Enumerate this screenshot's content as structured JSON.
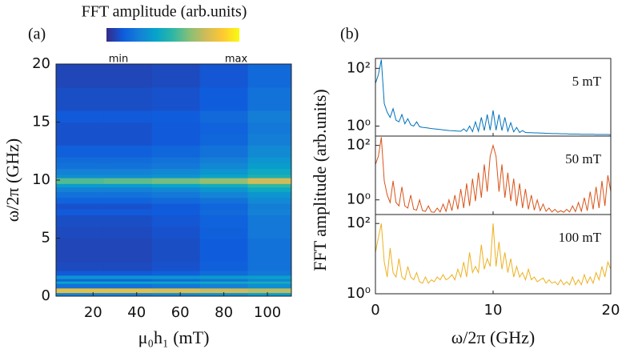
{
  "chart_data": [
    {
      "type": "heatmap",
      "panel_label": "(a)",
      "colorbar_title": "FFT amplitude (arb.units)",
      "colorbar_min": "min",
      "colorbar_max": "max",
      "colormap": [
        "#352a87",
        "#0f5cdd",
        "#1481d6",
        "#06a4ca",
        "#2eb7a4",
        "#87bf77",
        "#d1bb59",
        "#fec832",
        "#f9fb0e"
      ],
      "zlim": [
        0,
        1
      ],
      "xlabel": "μ₀h₁ (mT)",
      "ylabel": "ω/2π (GHz)",
      "xlim": [
        3,
        111
      ],
      "ylim": [
        0,
        20
      ],
      "xticks": [
        20,
        40,
        60,
        80,
        100
      ],
      "yticks": [
        0,
        5,
        10,
        15,
        20
      ],
      "xbins": [
        3,
        25,
        47,
        69,
        91,
        111
      ],
      "ybins": [
        0,
        0.3,
        0.7,
        1.1,
        1.3,
        1.5,
        1.8,
        2.2,
        3,
        4,
        5,
        6,
        7,
        7.5,
        8,
        8.5,
        9,
        9.4,
        9.7,
        10.2,
        10.5,
        11,
        11.5,
        12,
        13,
        14,
        15,
        16,
        18,
        20
      ],
      "z": [
        [
          0.25,
          0.25,
          0.28,
          0.3,
          0.35
        ],
        [
          0.8,
          0.8,
          0.78,
          0.75,
          0.72
        ],
        [
          0.2,
          0.2,
          0.22,
          0.25,
          0.3
        ],
        [
          0.38,
          0.38,
          0.38,
          0.4,
          0.42
        ],
        [
          0.15,
          0.15,
          0.17,
          0.2,
          0.25
        ],
        [
          0.32,
          0.32,
          0.32,
          0.34,
          0.36
        ],
        [
          0.12,
          0.12,
          0.14,
          0.18,
          0.22
        ],
        [
          0.08,
          0.08,
          0.1,
          0.14,
          0.2
        ],
        [
          0.07,
          0.07,
          0.09,
          0.13,
          0.2
        ],
        [
          0.07,
          0.07,
          0.09,
          0.13,
          0.2
        ],
        [
          0.08,
          0.08,
          0.1,
          0.14,
          0.22
        ],
        [
          0.09,
          0.09,
          0.11,
          0.15,
          0.22
        ],
        [
          0.12,
          0.12,
          0.13,
          0.17,
          0.25
        ],
        [
          0.1,
          0.1,
          0.12,
          0.16,
          0.24
        ],
        [
          0.15,
          0.15,
          0.17,
          0.2,
          0.28
        ],
        [
          0.2,
          0.2,
          0.22,
          0.26,
          0.32
        ],
        [
          0.25,
          0.25,
          0.27,
          0.32,
          0.4
        ],
        [
          0.35,
          0.35,
          0.38,
          0.42,
          0.5
        ],
        [
          0.55,
          0.57,
          0.6,
          0.65,
          0.75
        ],
        [
          0.3,
          0.3,
          0.32,
          0.38,
          0.45
        ],
        [
          0.25,
          0.25,
          0.27,
          0.32,
          0.4
        ],
        [
          0.2,
          0.2,
          0.22,
          0.27,
          0.35
        ],
        [
          0.18,
          0.18,
          0.2,
          0.24,
          0.32
        ],
        [
          0.14,
          0.14,
          0.16,
          0.2,
          0.28
        ],
        [
          0.1,
          0.1,
          0.12,
          0.16,
          0.24
        ],
        [
          0.1,
          0.1,
          0.12,
          0.15,
          0.22
        ],
        [
          0.12,
          0.12,
          0.13,
          0.17,
          0.24
        ],
        [
          0.09,
          0.09,
          0.1,
          0.13,
          0.2
        ],
        [
          0.07,
          0.07,
          0.08,
          0.11,
          0.17
        ]
      ]
    },
    {
      "type": "line",
      "panel_label": "(b)",
      "xlabel": "ω/2π (GHz)",
      "ylabel": "FFT amplitude (arb.units)",
      "xlim": [
        0,
        20
      ],
      "xticks": [
        0,
        10,
        20
      ],
      "log_y": true,
      "x": [
        0,
        0.25,
        0.5,
        0.75,
        1,
        1.25,
        1.5,
        1.75,
        2,
        2.25,
        2.5,
        2.75,
        3,
        3.25,
        3.5,
        3.75,
        4,
        4.25,
        4.5,
        4.75,
        5,
        5.25,
        5.5,
        5.75,
        6,
        6.25,
        6.5,
        6.75,
        7,
        7.25,
        7.5,
        7.75,
        8,
        8.25,
        8.5,
        8.75,
        9,
        9.25,
        9.5,
        9.75,
        10,
        10.25,
        10.5,
        10.75,
        11,
        11.25,
        11.5,
        11.75,
        12,
        12.25,
        12.5,
        12.75,
        13,
        13.25,
        13.5,
        13.75,
        14,
        14.25,
        14.5,
        14.75,
        15,
        15.25,
        15.5,
        15.75,
        16,
        16.25,
        16.5,
        16.75,
        17,
        17.25,
        17.5,
        17.75,
        18,
        18.25,
        18.5,
        18.75,
        19,
        19.25,
        19.5,
        19.75,
        20
      ],
      "series": [
        {
          "name": "5 mT",
          "color": "#0072bd",
          "ylim": [
            0.45,
            220
          ],
          "yticks": [
            {
              "value": 1,
              "label": "10⁰"
            },
            {
              "value": 100,
              "label": "10²"
            }
          ],
          "values": [
            30,
            60,
            200,
            6,
            3,
            2,
            4,
            1.6,
            1.4,
            2.5,
            1.2,
            1.8,
            1.1,
            1,
            1.4,
            0.95,
            0.9,
            0.88,
            0.85,
            0.82,
            0.8,
            0.78,
            0.76,
            0.74,
            0.72,
            0.7,
            0.69,
            0.68,
            0.67,
            0.66,
            0.8,
            0.65,
            1,
            0.64,
            1.4,
            0.66,
            2,
            0.7,
            2.5,
            0.72,
            3.5,
            0.72,
            2.5,
            0.7,
            2,
            0.66,
            1.3,
            0.63,
            0.9,
            0.6,
            0.7,
            0.6,
            0.59,
            0.59,
            0.58,
            0.58,
            0.57,
            0.57,
            0.56,
            0.56,
            0.55,
            0.55,
            0.55,
            0.54,
            0.54,
            0.54,
            0.53,
            0.53,
            0.53,
            0.53,
            0.52,
            0.52,
            0.52,
            0.52,
            0.52,
            0.51,
            0.51,
            0.51,
            0.51,
            0.51,
            0.5
          ]
        },
        {
          "name": "50 mT",
          "color": "#d95319",
          "ylim": [
            0.29,
            220
          ],
          "yticks": [
            {
              "value": 1,
              "label": "10⁰"
            },
            {
              "value": 100,
              "label": "10²"
            }
          ],
          "values": [
            20,
            40,
            200,
            5,
            1.5,
            0.8,
            5,
            0.8,
            0.6,
            3,
            0.6,
            0.5,
            1.5,
            0.45,
            0.42,
            1,
            0.4,
            0.38,
            0.6,
            0.36,
            0.35,
            0.5,
            0.36,
            0.7,
            0.38,
            1,
            0.4,
            1.5,
            0.45,
            2.5,
            0.5,
            4,
            0.6,
            6,
            0.9,
            10,
            1.2,
            20,
            2,
            40,
            100,
            40,
            2,
            20,
            1.2,
            10,
            0.9,
            6,
            0.6,
            4,
            0.5,
            2.5,
            0.45,
            1.5,
            0.42,
            1,
            0.4,
            0.7,
            0.38,
            0.5,
            0.36,
            0.45,
            0.35,
            0.4,
            0.35,
            0.45,
            0.36,
            0.6,
            0.37,
            0.8,
            0.38,
            1.2,
            0.4,
            2,
            0.45,
            3,
            0.5,
            5,
            0.6,
            8,
            2
          ]
        },
        {
          "name": "100 mT",
          "color": "#edb120",
          "ylim": [
            1,
            180
          ],
          "yticks": [
            {
              "value": 1,
              "label": "10⁰"
            },
            {
              "value": 100,
              "label": "10²"
            }
          ],
          "values": [
            15,
            40,
            100,
            8,
            3,
            20,
            4,
            3,
            10,
            3,
            2.5,
            6,
            3,
            2.5,
            4,
            2.2,
            2,
            3,
            2,
            2.5,
            2.2,
            3,
            2.5,
            3.5,
            2.5,
            2.8,
            3.5,
            2.5,
            5,
            3,
            8,
            3,
            15,
            4,
            6,
            4,
            25,
            5,
            10,
            6,
            100,
            6,
            30,
            5,
            15,
            4,
            10,
            3,
            6,
            3,
            4,
            2.5,
            5,
            2.5,
            3,
            2.2,
            2.5,
            2.8,
            2,
            2.5,
            2,
            2.2,
            1.8,
            2.5,
            1.8,
            2.2,
            1.8,
            3,
            1.8,
            2.5,
            1.8,
            3.5,
            2,
            3,
            2,
            4,
            2.5,
            6,
            3,
            8,
            5
          ]
        }
      ]
    }
  ]
}
